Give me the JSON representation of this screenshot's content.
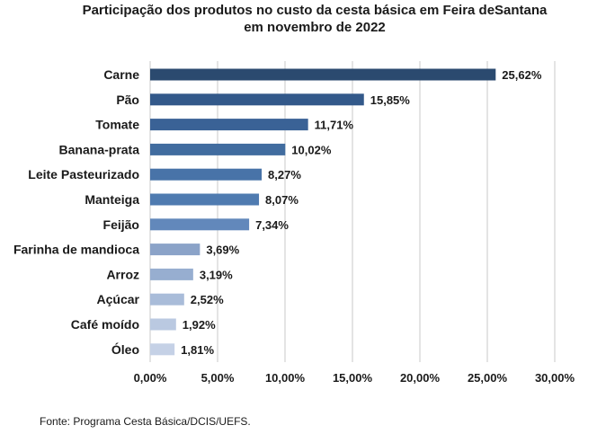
{
  "chart_data": {
    "type": "bar",
    "orientation": "horizontal",
    "title": "Participação dos produtos no custo da cesta básica em Feira deSantana",
    "subtitle": "em novembro de 2022",
    "categories": [
      "Carne",
      "Pão",
      "Tomate",
      "Banana-prata",
      "Leite Pasteurizado",
      "Manteiga",
      "Feijão",
      "Farinha de mandioca",
      "Arroz",
      "Açúcar",
      "Café moído",
      "Óleo"
    ],
    "values": [
      25.62,
      15.85,
      11.71,
      10.02,
      8.27,
      8.07,
      7.34,
      3.69,
      3.19,
      2.52,
      1.92,
      1.81
    ],
    "data_labels": [
      "25,62%",
      "15,85%",
      "11,71%",
      "10,02%",
      "8,27%",
      "8,07%",
      "7,34%",
      "3,69%",
      "3,19%",
      "2,52%",
      "1,92%",
      "1,81%"
    ],
    "x_ticks": [
      0,
      5,
      10,
      15,
      20,
      25,
      30
    ],
    "x_tick_labels": [
      "0,00%",
      "5,00%",
      "10,00%",
      "15,00%",
      "20,00%",
      "25,00%",
      "30,00%"
    ],
    "xlim": [
      0,
      30
    ],
    "xlabel": "",
    "ylabel": "",
    "grid": "vertical",
    "legend": "none",
    "bar_colors": [
      "#2b4a6f",
      "#33598a",
      "#3a6296",
      "#416c9f",
      "#4873a8",
      "#4f7bb0",
      "#6288bb",
      "#8ba3c8",
      "#97aed0",
      "#a9bcd9",
      "#bac9e1",
      "#c5d1e6"
    ]
  },
  "footer": {
    "source": "Fonte: Programa Cesta Básica/DCIS/UEFS."
  }
}
